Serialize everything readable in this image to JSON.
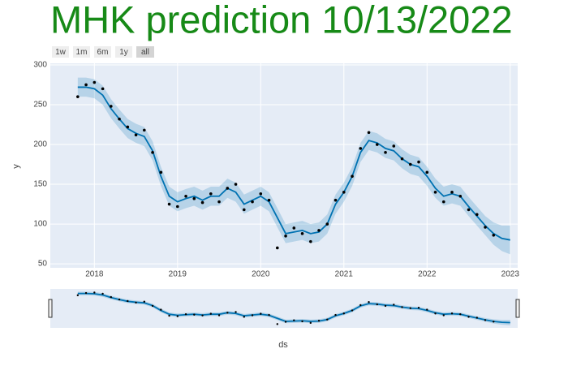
{
  "chart_data": {
    "type": "line",
    "title": "MHK prediction 10/13/2022",
    "buttons": [
      "1w",
      "1m",
      "6m",
      "1y",
      "all"
    ],
    "active_button": "all",
    "xlabel": "ds",
    "ylabel": "y",
    "x": [
      2017.8,
      2017.9,
      2018.0,
      2018.1,
      2018.2,
      2018.3,
      2018.4,
      2018.5,
      2018.6,
      2018.7,
      2018.8,
      2018.9,
      2019.0,
      2019.1,
      2019.2,
      2019.3,
      2019.4,
      2019.5,
      2019.6,
      2019.7,
      2019.8,
      2019.9,
      2020.0,
      2020.1,
      2020.2,
      2020.3,
      2020.4,
      2020.5,
      2020.6,
      2020.7,
      2020.8,
      2020.9,
      2021.0,
      2021.1,
      2021.2,
      2021.3,
      2021.4,
      2021.5,
      2021.6,
      2021.7,
      2021.8,
      2021.9,
      2022.0,
      2022.1,
      2022.2,
      2022.3,
      2022.4,
      2022.5,
      2022.6,
      2022.7,
      2022.8,
      2022.9,
      2023.0
    ],
    "series": [
      {
        "mode": "markers",
        "color": "#000000",
        "values": [
          260,
          275,
          278,
          270,
          248,
          232,
          222,
          212,
          218,
          190,
          165,
          125,
          122,
          135,
          132,
          127,
          138,
          128,
          145,
          150,
          118,
          128,
          138,
          130,
          70,
          85,
          95,
          88,
          78,
          92,
          100,
          130,
          140,
          160,
          195,
          215,
          200,
          190,
          198,
          182,
          175,
          178,
          165,
          140,
          128,
          140,
          135,
          118,
          112,
          96,
          86,
          null,
          null
        ]
      },
      {
        "mode": "line",
        "color": "#0072B2",
        "band_color": "rgba(0,114,178,0.2)",
        "values": [
          272,
          272,
          270,
          262,
          245,
          232,
          220,
          214,
          210,
          192,
          160,
          135,
          128,
          132,
          135,
          130,
          135,
          135,
          145,
          140,
          125,
          130,
          135,
          128,
          108,
          88,
          90,
          92,
          88,
          90,
          100,
          125,
          140,
          160,
          190,
          205,
          202,
          195,
          192,
          182,
          175,
          172,
          160,
          145,
          135,
          138,
          135,
          122,
          110,
          98,
          88,
          82,
          80
        ],
        "lower": [
          260,
          260,
          258,
          250,
          233,
          220,
          208,
          202,
          198,
          180,
          148,
          123,
          116,
          120,
          123,
          118,
          123,
          123,
          133,
          128,
          113,
          118,
          123,
          116,
          96,
          76,
          78,
          80,
          76,
          78,
          88,
          113,
          128,
          148,
          178,
          193,
          190,
          183,
          180,
          170,
          163,
          160,
          148,
          133,
          123,
          126,
          123,
          110,
          98,
          86,
          74,
          66,
          62
        ],
        "upper": [
          284,
          284,
          282,
          274,
          257,
          244,
          232,
          226,
          222,
          204,
          172,
          147,
          140,
          144,
          147,
          142,
          147,
          147,
          157,
          152,
          137,
          142,
          147,
          140,
          120,
          100,
          102,
          104,
          100,
          102,
          112,
          137,
          152,
          172,
          202,
          217,
          214,
          207,
          204,
          194,
          187,
          184,
          172,
          157,
          147,
          150,
          147,
          134,
          122,
          110,
          102,
          98,
          98
        ]
      }
    ],
    "xlim": [
      2017.47,
      2023.09
    ],
    "xticks": [
      2018,
      2019,
      2020,
      2021,
      2022,
      2023
    ],
    "ylim": [
      45,
      302
    ],
    "yticks": [
      50,
      100,
      150,
      200,
      250,
      300
    ],
    "grid": true
  }
}
